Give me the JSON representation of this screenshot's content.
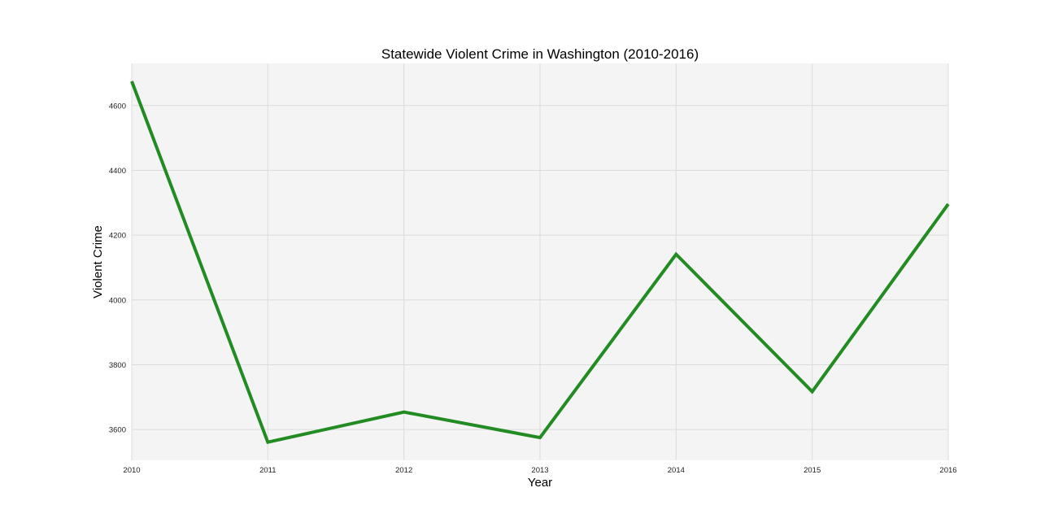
{
  "chart_data": {
    "type": "line",
    "title": "Statewide Violent Crime in Washington (2010-2016)",
    "xlabel": "Year",
    "ylabel": "Violent Crime",
    "x": [
      "2010",
      "2011",
      "2012",
      "2013",
      "2014",
      "2015",
      "2016"
    ],
    "series": [
      {
        "values": [
          4675,
          3561,
          3654,
          3575,
          4141,
          3717,
          4296
        ],
        "color": "#228b22"
      }
    ],
    "xlim": [
      2010,
      2016
    ],
    "ylim": [
      3505,
      4730
    ],
    "yticks": [
      3600,
      3800,
      4000,
      4200,
      4400,
      4600
    ],
    "grid": true,
    "plot_background": "#f4f4f4",
    "grid_color": "#dcdcdc"
  }
}
